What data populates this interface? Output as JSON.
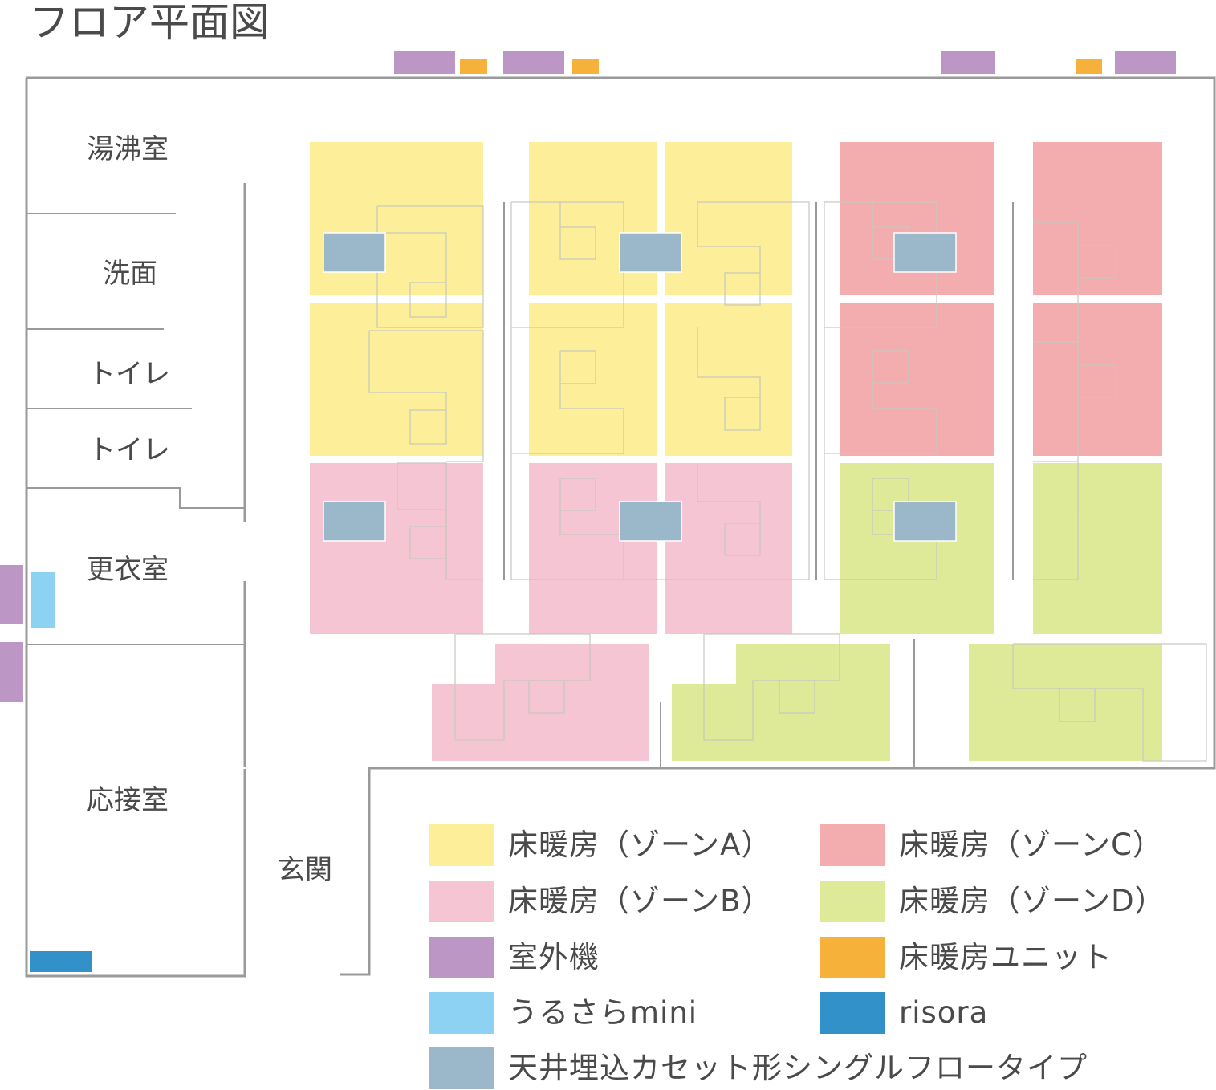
{
  "title": "フロア平面図",
  "colors": {
    "zone_a": "#fdee99",
    "zone_b": "#f6c5d4",
    "zone_c": "#f4adaf",
    "zone_d": "#dfea98",
    "outdoor_unit": "#bc96c5",
    "floor_heating_unit": "#f6b13b",
    "urusara_mini": "#8dd2f3",
    "risora": "#3291c9",
    "cassette": "#9bb8cb",
    "wall": "#9a9a9a"
  },
  "rooms": {
    "yuwakashi": "湯沸室",
    "senmen": "洗面",
    "toilet_1": "トイレ",
    "toilet_2": "トイレ",
    "koui": "更衣室",
    "ousetsu": "応接室",
    "genkan": "玄関"
  },
  "legend": {
    "zone_a": {
      "label": "床暖房（ゾーンA）",
      "icon": "zone-a-swatch"
    },
    "zone_c": {
      "label": "床暖房（ゾーンC）",
      "icon": "zone-c-swatch"
    },
    "zone_b": {
      "label": "床暖房（ゾーンB）",
      "icon": "zone-b-swatch"
    },
    "zone_d": {
      "label": "床暖房（ゾーンD）",
      "icon": "zone-d-swatch"
    },
    "outdoor_unit": {
      "label": "室外機",
      "icon": "outdoor-unit-swatch"
    },
    "floor_heating_unit": {
      "label": "床暖房ユニット",
      "icon": "floor-heating-unit-swatch"
    },
    "urusara_mini": {
      "label": "うるさらmini",
      "icon": "urusara-mini-swatch"
    },
    "risora": {
      "label": "risora",
      "icon": "risora-swatch"
    },
    "cassette": {
      "label": "天井埋込カセット形シングルフロータイプ",
      "icon": "cassette-swatch"
    }
  }
}
